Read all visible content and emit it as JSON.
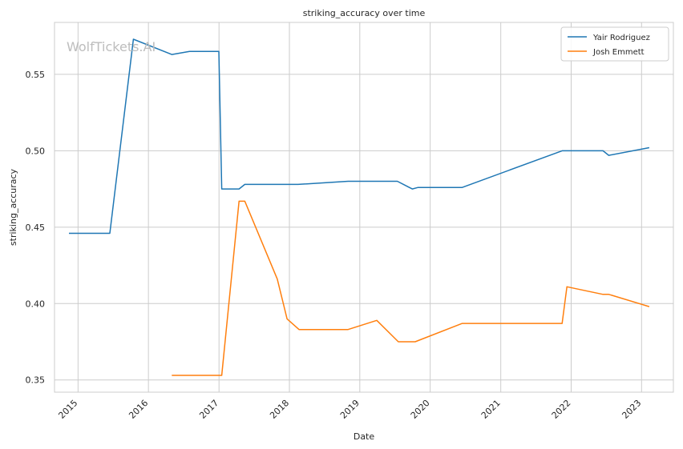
{
  "chart_data": {
    "type": "line",
    "title": "striking_accuracy over time",
    "xlabel": "Date",
    "ylabel": "striking_accuracy",
    "watermark": "WolfTickets.AI",
    "x_ticks": [
      "2015",
      "2016",
      "2017",
      "2018",
      "2019",
      "2020",
      "2021",
      "2022",
      "2023"
    ],
    "y_ticks": [
      "0.35",
      "0.40",
      "0.45",
      "0.50",
      "0.55"
    ],
    "xlim": [
      "2014-09-01",
      "2023-06-15"
    ],
    "ylim": [
      0.342,
      0.584
    ],
    "grid": true,
    "legend_position": "top-right",
    "series": [
      {
        "name": "Yair Rodriguez",
        "color": "#1f77b4",
        "points": [
          [
            "2014-11-15",
            0.446
          ],
          [
            "2015-06-15",
            0.446
          ],
          [
            "2015-10-15",
            0.573
          ],
          [
            "2016-05-01",
            0.563
          ],
          [
            "2016-08-01",
            0.565
          ],
          [
            "2016-12-31",
            0.565
          ],
          [
            "2017-01-15",
            0.475
          ],
          [
            "2017-04-15",
            0.475
          ],
          [
            "2017-05-15",
            0.478
          ],
          [
            "2018-02-15",
            0.478
          ],
          [
            "2018-11-01",
            0.48
          ],
          [
            "2019-07-15",
            0.48
          ],
          [
            "2019-09-30",
            0.475
          ],
          [
            "2019-10-30",
            0.476
          ],
          [
            "2020-06-15",
            0.476
          ],
          [
            "2021-11-15",
            0.5
          ],
          [
            "2022-06-15",
            0.5
          ],
          [
            "2022-07-15",
            0.497
          ],
          [
            "2023-02-10",
            0.502
          ]
        ]
      },
      {
        "name": "Josh Emmett",
        "color": "#ff7f0e",
        "points": [
          [
            "2016-05-01",
            0.353
          ],
          [
            "2017-01-15",
            0.353
          ],
          [
            "2017-04-15",
            0.467
          ],
          [
            "2017-05-15",
            0.467
          ],
          [
            "2017-10-30",
            0.416
          ],
          [
            "2017-12-20",
            0.39
          ],
          [
            "2018-02-20",
            0.383
          ],
          [
            "2018-11-01",
            0.383
          ],
          [
            "2019-03-30",
            0.389
          ],
          [
            "2019-07-20",
            0.375
          ],
          [
            "2019-10-15",
            0.375
          ],
          [
            "2020-06-15",
            0.387
          ],
          [
            "2021-11-15",
            0.387
          ],
          [
            "2021-12-10",
            0.411
          ],
          [
            "2022-06-15",
            0.406
          ],
          [
            "2022-07-15",
            0.406
          ],
          [
            "2023-02-10",
            0.398
          ]
        ]
      }
    ]
  }
}
